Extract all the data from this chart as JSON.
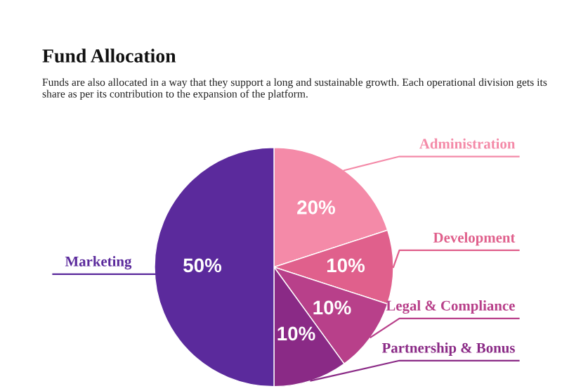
{
  "chart_data": {
    "type": "pie",
    "title": "Fund Allocation",
    "subtitle": "Funds are also allocated in a way that they support a long and sustainable growth. Each operational division gets its share as per its contribution to the expansion of the platform.",
    "categories": [
      "Administration",
      "Development",
      "Legal & Compliance",
      "Partnership & Bonus",
      "Marketing"
    ],
    "values": [
      20,
      10,
      10,
      10,
      50
    ],
    "value_labels": [
      "20%",
      "10%",
      "10%",
      "10%",
      "50%"
    ],
    "colors": [
      "#f48aa8",
      "#e0608c",
      "#b8408a",
      "#8a2a86",
      "#5b2a9c"
    ],
    "legend": false
  }
}
